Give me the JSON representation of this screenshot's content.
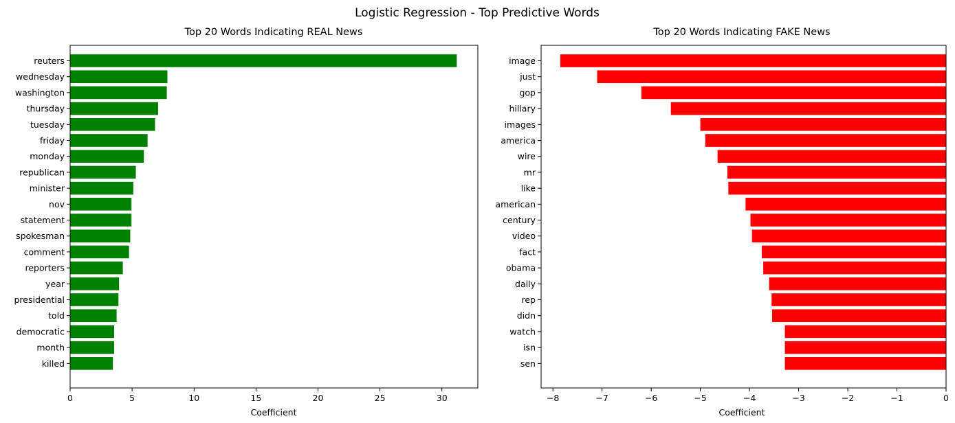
{
  "figure": {
    "title": "Logistic Regression - Top Predictive Words"
  },
  "chart_data": [
    {
      "type": "bar",
      "orientation": "horizontal",
      "title": "Top 20 Words Indicating REAL News",
      "xlabel": "Coefficient",
      "ylabel": "",
      "xlim": [
        0,
        32.9
      ],
      "xticks": [
        0,
        5,
        10,
        15,
        20,
        25,
        30
      ],
      "color": "#008000",
      "grid": false,
      "categories": [
        "reuters",
        "wednesday",
        "washington",
        "thursday",
        "tuesday",
        "friday",
        "monday",
        "republican",
        "minister",
        "nov",
        "statement",
        "spokesman",
        "comment",
        "reporters",
        "year",
        "presidential",
        "told",
        "democratic",
        "month",
        "killed"
      ],
      "values": [
        31.2,
        7.85,
        7.8,
        7.1,
        6.85,
        6.25,
        5.95,
        5.3,
        5.1,
        4.95,
        4.95,
        4.85,
        4.75,
        4.25,
        3.95,
        3.9,
        3.75,
        3.55,
        3.55,
        3.45
      ]
    },
    {
      "type": "bar",
      "orientation": "horizontal",
      "title": "Top 20 Words Indicating FAKE News",
      "xlabel": "Coefficient",
      "ylabel": "",
      "xlim": [
        -8.24,
        0
      ],
      "xticks": [
        -8,
        -7,
        -6,
        -5,
        -4,
        -3,
        -2,
        -1,
        0
      ],
      "xtick_labels": [
        "−8",
        "−7",
        "−6",
        "−5",
        "−4",
        "−3",
        "−2",
        "−1",
        "0"
      ],
      "color": "#ff0000",
      "grid": false,
      "categories": [
        "image",
        "just",
        "gop",
        "hillary",
        "images",
        "america",
        "wire",
        "mr",
        "like",
        "american",
        "century",
        "video",
        "fact",
        "obama",
        "daily",
        "rep",
        "didn",
        "watch",
        "isn",
        "sen"
      ],
      "values": [
        -7.85,
        -7.1,
        -6.2,
        -5.6,
        -5.0,
        -4.9,
        -4.65,
        -4.45,
        -4.43,
        -4.08,
        -3.98,
        -3.95,
        -3.75,
        -3.72,
        -3.6,
        -3.55,
        -3.54,
        -3.28,
        -3.28,
        -3.28
      ]
    }
  ]
}
